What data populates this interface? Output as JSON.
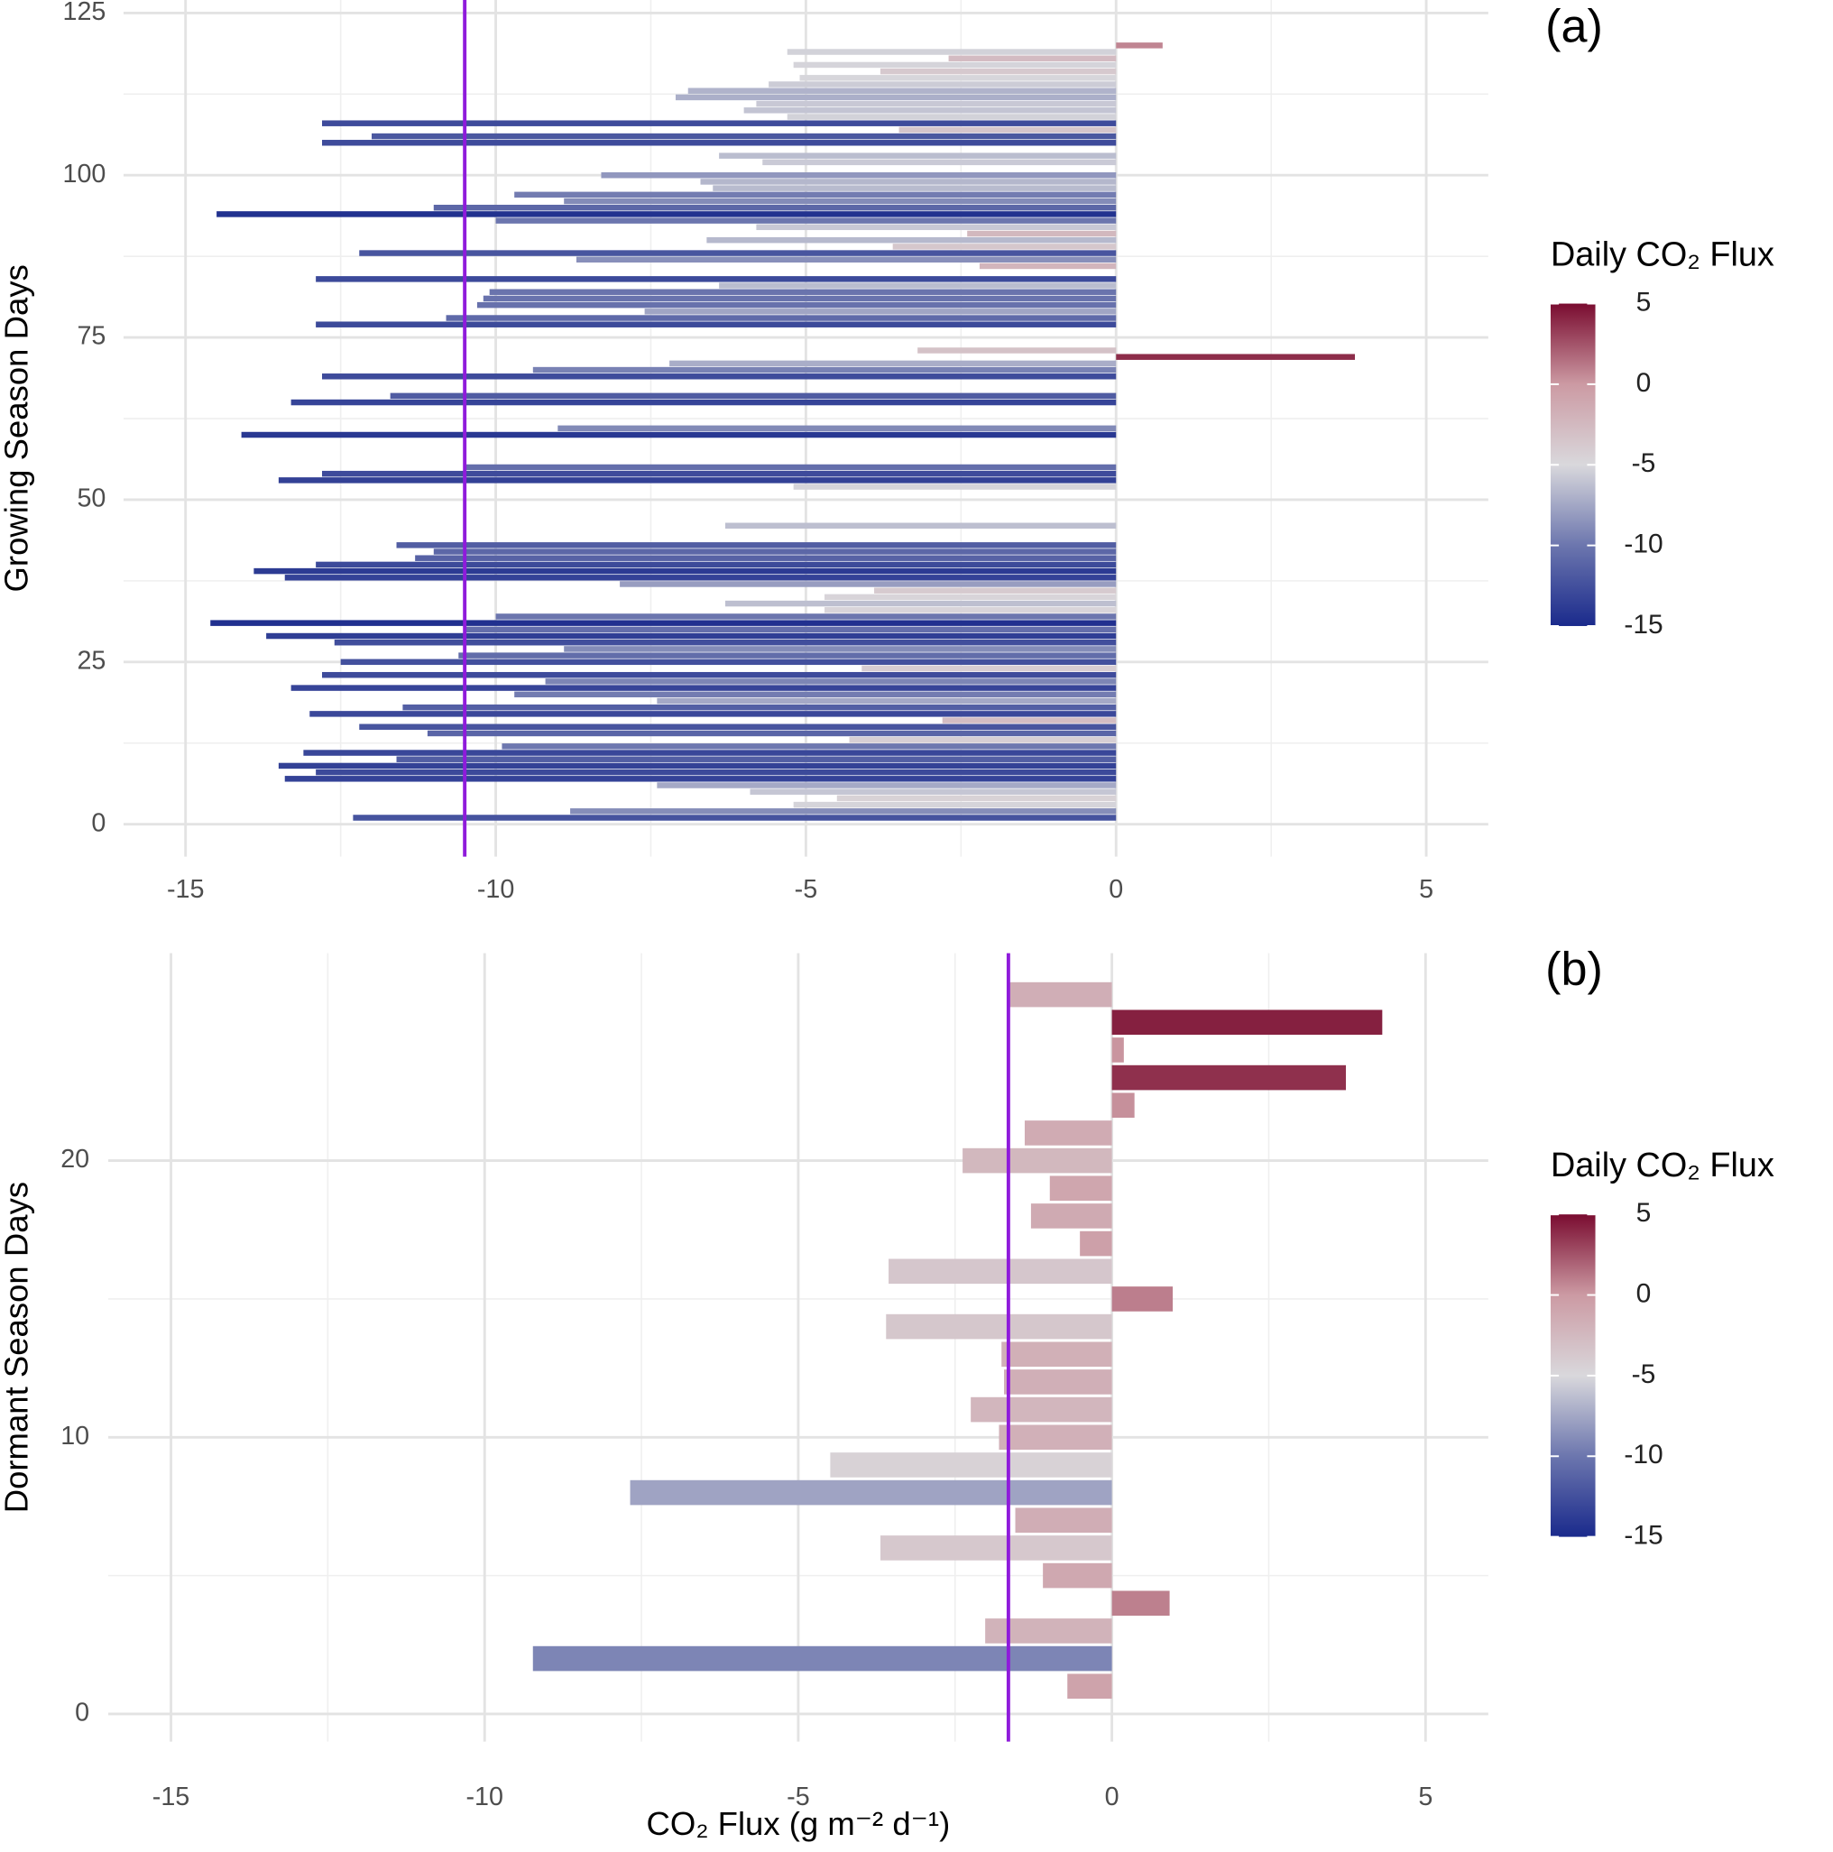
{
  "chart_data": [
    {
      "type": "bar",
      "orientation": "horizontal",
      "panel_label": "(a)",
      "y_label": "Growing Season Days",
      "y": [
        1,
        2,
        3,
        4,
        5,
        6,
        7,
        8,
        9,
        10,
        11,
        12,
        13,
        14,
        15,
        16,
        17,
        18,
        19,
        20,
        21,
        22,
        23,
        24,
        25,
        26,
        27,
        28,
        29,
        30,
        31,
        32,
        33,
        34,
        35,
        36,
        37,
        38,
        39,
        40,
        41,
        42,
        43,
        46,
        52,
        53,
        54,
        55,
        60,
        61,
        65,
        66,
        69,
        70,
        71,
        72,
        73,
        77,
        78,
        79,
        80,
        81,
        82,
        83,
        84,
        86,
        87,
        88,
        89,
        90,
        91,
        92,
        93,
        94,
        95,
        96,
        97,
        98,
        99,
        100,
        102,
        103,
        105,
        106,
        107,
        108,
        109,
        110,
        111,
        112,
        113,
        114,
        115,
        116,
        117,
        118,
        119,
        120
      ],
      "values": [
        -12.3,
        -8.8,
        -5.2,
        -4.5,
        -5.9,
        -7.4,
        -13.4,
        -12.9,
        -13.5,
        -11.6,
        -13.1,
        -9.9,
        -4.3,
        -11.1,
        -12.2,
        -2.8,
        -13.0,
        -11.5,
        -7.4,
        -9.7,
        -13.3,
        -9.2,
        -12.8,
        -4.1,
        -12.5,
        -10.6,
        -8.9,
        -12.6,
        -13.7,
        -10.5,
        -14.6,
        -10.0,
        -4.7,
        -6.3,
        -4.7,
        -3.9,
        -8.0,
        -13.4,
        -13.9,
        -12.9,
        -11.3,
        -11.0,
        -11.6,
        -6.3,
        -5.2,
        -13.5,
        -12.8,
        -10.5,
        -14.1,
        -9.0,
        -13.3,
        -11.7,
        -12.8,
        -9.4,
        -7.2,
        3.85,
        -3.2,
        -12.9,
        -10.8,
        -7.6,
        -10.3,
        -10.2,
        -10.1,
        -6.4,
        -12.9,
        -2.2,
        -8.7,
        -12.2,
        -3.6,
        -6.6,
        -2.4,
        -5.8,
        -10.0,
        -14.5,
        -11.0,
        -8.9,
        -9.7,
        -6.5,
        -6.7,
        -8.3,
        -5.7,
        -6.4,
        -12.8,
        -12.0,
        -3.5,
        -12.8,
        -5.3,
        -6.0,
        -5.8,
        -7.1,
        -6.9,
        -5.6,
        -5.1,
        -3.8,
        -5.2,
        -2.7,
        -5.3,
        0.75
      ],
      "xlim": [
        -16,
        6
      ],
      "xticks": [
        -15,
        -10,
        -5,
        0,
        5
      ],
      "ylim": [
        -5,
        127
      ],
      "yticks": [
        0,
        25,
        50,
        75,
        100,
        125
      ],
      "reference_line": -10.5,
      "reference_color": "#8f1bdb",
      "grid": true,
      "colorbar": {
        "title": "Daily CO₂ Flux",
        "lim": [
          -15,
          5
        ],
        "ticks": [
          -15,
          -10,
          -5,
          0,
          5
        ],
        "colors": [
          "#1a2a8c",
          "#6c76ae",
          "#d9d8dc",
          "#cc9aa3",
          "#7a0c30"
        ]
      }
    },
    {
      "type": "bar",
      "orientation": "horizontal",
      "panel_label": "(b)",
      "y_label": "Dormant Season Days",
      "x_label": "CO₂ Flux (g m⁻² d⁻¹)",
      "y": [
        1,
        2,
        3,
        4,
        5,
        6,
        7,
        8,
        9,
        10,
        11,
        12,
        13,
        14,
        15,
        16,
        17,
        18,
        19,
        20,
        21,
        22,
        23,
        24,
        25,
        26
      ],
      "values": [
        -0.71,
        -9.23,
        -2.02,
        0.92,
        -1.1,
        -3.69,
        -1.54,
        -7.68,
        -4.49,
        -1.8,
        -2.25,
        -1.72,
        -1.76,
        -3.6,
        0.97,
        -3.56,
        -0.51,
        -1.29,
        -0.99,
        -2.38,
        -1.39,
        0.36,
        3.73,
        0.19,
        4.31,
        -1.65
      ],
      "xlim": [
        -16,
        6
      ],
      "xticks": [
        -15,
        -10,
        -5,
        0,
        5
      ],
      "ylim": [
        -1,
        27.5
      ],
      "yticks": [
        0,
        10,
        20
      ],
      "reference_line": -1.65,
      "reference_color": "#8f1bdb",
      "grid": true,
      "colorbar": {
        "title": "Daily CO₂ Flux",
        "lim": [
          -15,
          5
        ],
        "ticks": [
          -15,
          -10,
          -5,
          0,
          5
        ],
        "colors": [
          "#1a2a8c",
          "#6c76ae",
          "#d9d8dc",
          "#cc9aa3",
          "#7a0c30"
        ]
      }
    }
  ]
}
